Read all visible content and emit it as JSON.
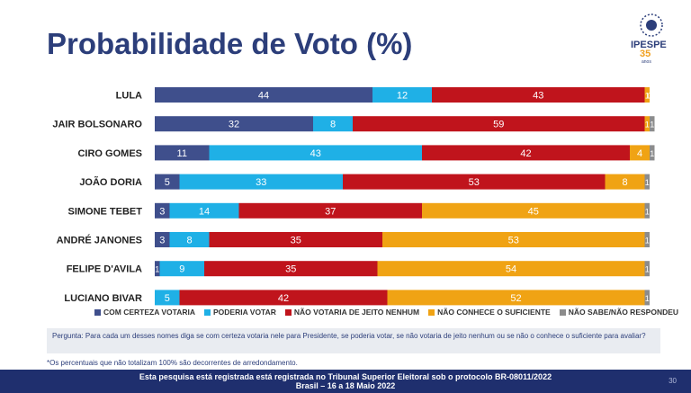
{
  "title": "Probabilidade de Voto (%)",
  "logo": {
    "name": "IPESPE",
    "years": "35",
    "sub": "anos"
  },
  "colors": {
    "certeza": "#3f4f8c",
    "poderia": "#1fb0e6",
    "nao_votaria": "#c0141c",
    "nao_conhece": "#f0a314",
    "nao_sabe": "#8c8c8c",
    "title": "#2c3e7a"
  },
  "chart_data": {
    "type": "bar",
    "orientation": "horizontal-stacked",
    "categories": [
      "LULA",
      "JAIR BOLSONARO",
      "CIRO GOMES",
      "JOÃO DORIA",
      "SIMONE  TEBET",
      "ANDRÉ JANONES",
      "FELIPE D'AVILA",
      "LUCIANO BIVAR"
    ],
    "series": [
      {
        "name": "COM CERTEZA VOTARIA",
        "values": [
          44,
          32,
          11,
          5,
          3,
          3,
          1,
          0
        ]
      },
      {
        "name": "PODERIA VOTAR",
        "values": [
          12,
          8,
          43,
          33,
          14,
          8,
          9,
          5
        ]
      },
      {
        "name": "NÃO VOTARIA DE JEITO NENHUM",
        "values": [
          43,
          59,
          42,
          53,
          37,
          35,
          35,
          42
        ]
      },
      {
        "name": "NÃO CONHECE O SUFICIENTE",
        "values": [
          1,
          1,
          4,
          8,
          45,
          53,
          54,
          52
        ]
      },
      {
        "name": "NÃO SABE/NÃO RESPONDEU",
        "values": [
          0,
          1,
          1,
          1,
          1,
          1,
          1,
          1
        ]
      }
    ],
    "xlim": [
      0,
      100
    ]
  },
  "question": "Pergunta:  Para cada um desses nomes diga se com certeza votaria nele para Presidente, se poderia votar, se não votaria de jeito nenhum ou se não o conhece o suficiente para avaliar?",
  "note": "*Os percentuais que não totalizam 100% são decorrentes de arredondamento.",
  "footer": {
    "line1": "Esta pesquisa está registrada está registrada no Tribunal Superior Eleitoral sob o protocolo BR-08011/2022",
    "line2": "Brasil – 16 a 18 Maio 2022",
    "page": "30"
  }
}
